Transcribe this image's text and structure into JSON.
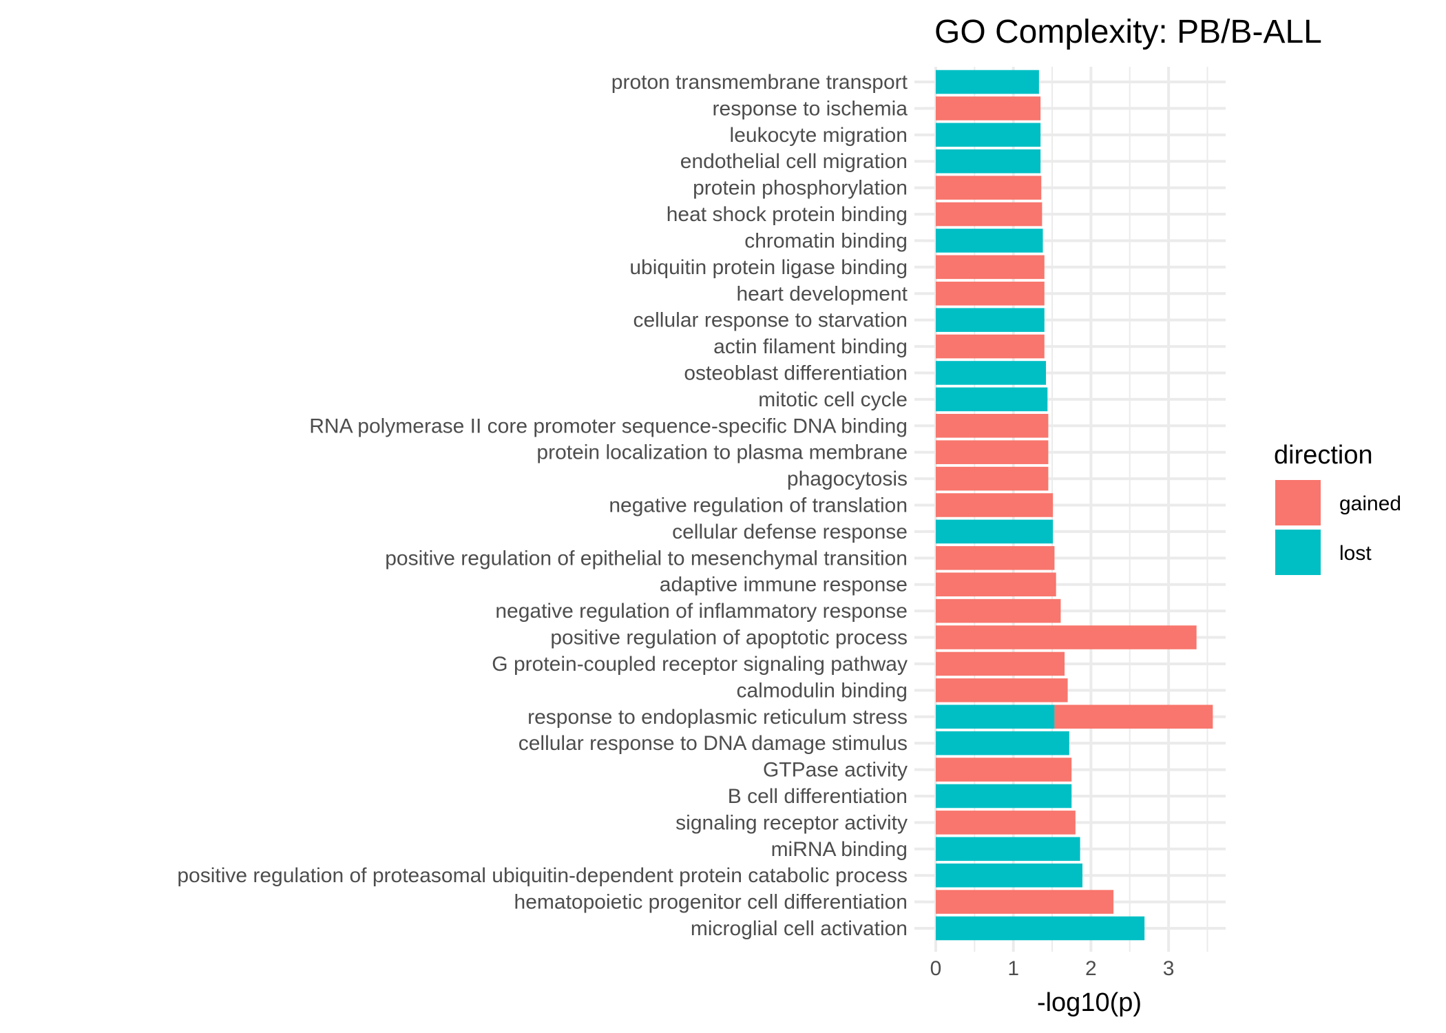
{
  "chart_data": {
    "type": "bar",
    "orientation": "horizontal",
    "stacked": true,
    "title": "GO Complexity: PB/B-ALL",
    "xlabel": "-log10(p)",
    "ylabel": "",
    "xlim": [
      0,
      3.7
    ],
    "xticks": [
      0,
      1,
      2,
      3
    ],
    "xtick_labels": [
      "0",
      "1",
      "2",
      "3"
    ],
    "grid": true,
    "legend": {
      "title": "direction",
      "position": "right",
      "entries": [
        {
          "name": "gained",
          "color": "#F8766D"
        },
        {
          "name": "lost",
          "color": "#00BFC4"
        }
      ]
    },
    "categories": [
      "proton transmembrane transport",
      "response to ischemia",
      "leukocyte migration",
      "endothelial cell migration",
      "protein phosphorylation",
      "heat shock protein binding",
      "chromatin binding",
      "ubiquitin protein ligase binding",
      "heart development",
      "cellular response to starvation",
      "actin filament binding",
      "osteoblast differentiation",
      "mitotic cell cycle",
      "RNA polymerase II core promoter sequence-specific DNA binding",
      "protein localization to plasma membrane",
      "phagocytosis",
      "negative regulation of translation",
      "cellular defense response",
      "positive regulation of epithelial to mesenchymal transition",
      "adaptive immune response",
      "negative regulation of inflammatory response",
      "positive regulation of apoptotic process",
      "G protein-coupled receptor signaling pathway",
      "calmodulin binding",
      "response to endoplasmic reticulum stress",
      "cellular response to DNA damage stimulus",
      "GTPase activity",
      "B cell differentiation",
      "signaling receptor activity",
      "miRNA binding",
      "positive regulation of proteasomal ubiquitin-dependent protein catabolic process",
      "hematopoietic progenitor cell differentiation",
      "microglial cell activation"
    ],
    "series": [
      {
        "name": "lost",
        "color": "#00BFC4",
        "values": [
          1.33,
          0,
          1.35,
          1.35,
          0,
          0,
          1.38,
          0,
          0,
          1.4,
          0,
          1.42,
          1.44,
          0,
          0,
          0,
          0,
          1.51,
          0,
          0,
          0,
          0,
          0,
          0,
          1.53,
          1.72,
          0,
          1.75,
          0,
          1.86,
          1.89,
          0,
          2.69
        ]
      },
      {
        "name": "gained",
        "color": "#F8766D",
        "values": [
          0,
          1.35,
          0,
          0,
          1.36,
          1.37,
          0,
          1.4,
          1.4,
          0,
          1.4,
          0,
          0,
          1.45,
          1.45,
          1.45,
          1.51,
          0,
          1.53,
          1.55,
          1.61,
          3.36,
          1.66,
          1.7,
          2.04,
          0,
          1.75,
          0,
          1.8,
          0,
          0,
          2.29,
          0
        ]
      }
    ]
  }
}
